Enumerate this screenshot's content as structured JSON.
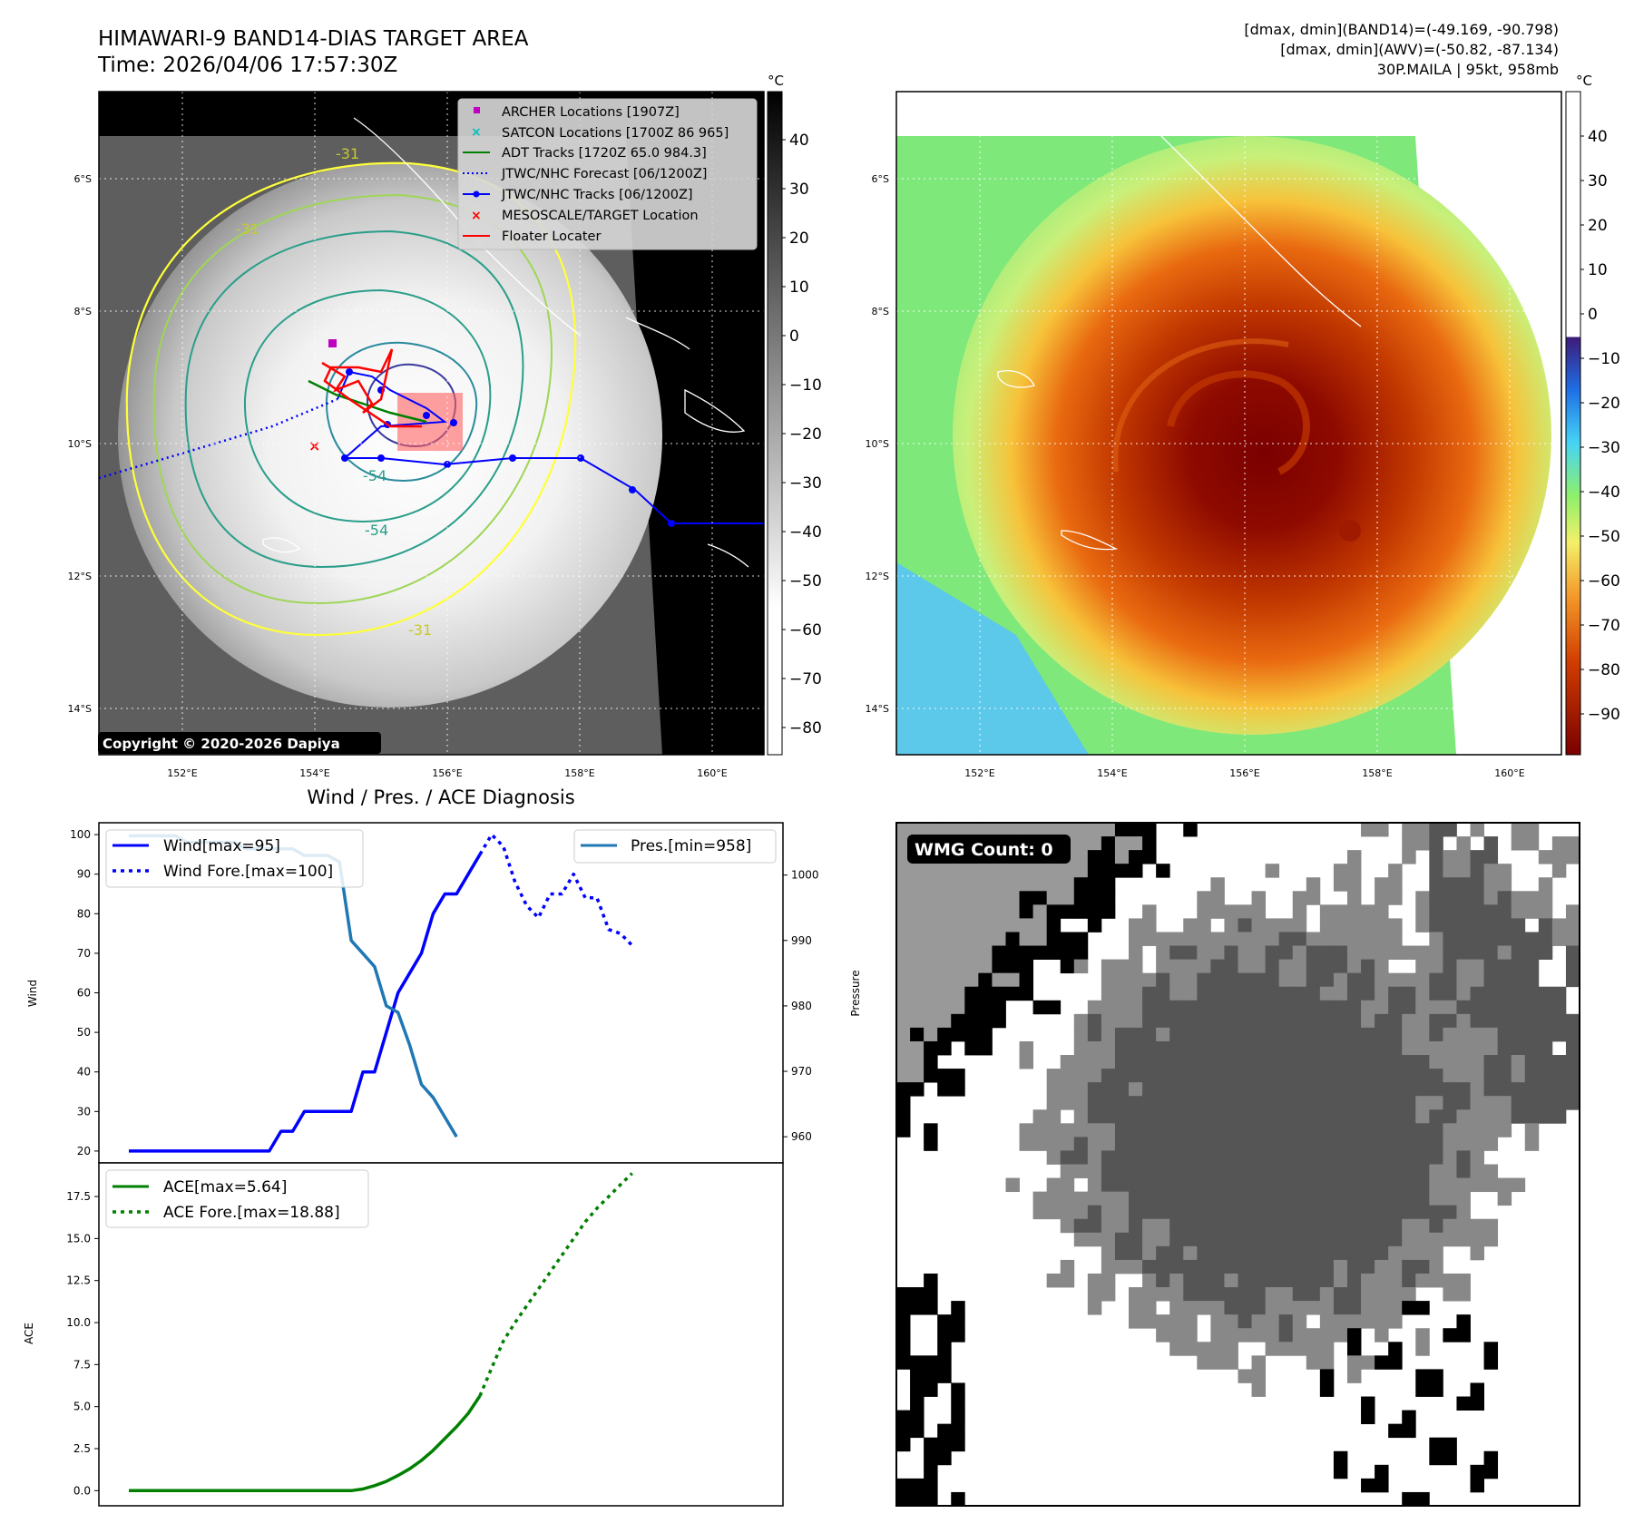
{
  "header": {
    "title_line1": "HIMAWARI-9 BAND14-DIAS TARGET AREA",
    "title_line2": "Time: 2026/04/06 17:57:30Z",
    "info_line1": "[dmax, dmin](BAND14)=(-49.169, -90.798)",
    "info_line2": "[dmax, dmin](AWV)=(-50.82, -87.134)",
    "info_line3": "30P.MAILA | 95kt, 958mb"
  },
  "map": {
    "lat_labels": [
      "6°S",
      "8°S",
      "10°S",
      "12°S",
      "14°S"
    ],
    "lon_labels": [
      "152°E",
      "154°E",
      "156°E",
      "158°E",
      "160°E"
    ],
    "copyright": "Copyright © 2020-2026 Dapiya",
    "contour_labels": [
      "-31",
      "-31",
      "-31",
      "-54",
      "-54",
      "-31"
    ],
    "legend": [
      {
        "label": "ARCHER Locations [1907Z]",
        "color": "#bf00bf",
        "marker": "square"
      },
      {
        "label": "SATCON Locations [1700Z 86 965]",
        "color": "#00bfbf",
        "marker": "x"
      },
      {
        "label": "ADT Tracks [1720Z 65.0 984.3]",
        "color": "#008000",
        "marker": "line"
      },
      {
        "label": "JTWC/NHC Forecast [06/1200Z]",
        "color": "#0000ff",
        "marker": "dotted"
      },
      {
        "label": "JTWC/NHC Tracks [06/1200Z]",
        "color": "#0000ff",
        "marker": "line-dot"
      },
      {
        "label": "MESOSCALE/TARGET Location",
        "color": "#ff0000",
        "marker": "x"
      },
      {
        "label": "Floater Locater",
        "color": "#ff0000",
        "marker": "line"
      }
    ]
  },
  "colorbar_left": {
    "unit": "°C",
    "ticks": [
      "40",
      "30",
      "20",
      "10",
      "0",
      "−10",
      "−20",
      "−30",
      "−40",
      "−50",
      "−60",
      "−70",
      "−80"
    ]
  },
  "colorbar_right": {
    "unit": "°C",
    "ticks": [
      "40",
      "30",
      "20",
      "10",
      "0",
      "−10",
      "−20",
      "−30",
      "−40",
      "−50",
      "−60",
      "−70",
      "−80",
      "−90"
    ]
  },
  "wmg": {
    "label": "WMG Count: 0"
  },
  "chart_data": [
    {
      "type": "line",
      "title": "Wind / Pres. / ACE Diagnosis",
      "ylabel": "Wind",
      "y2label": "Pressure",
      "ylim": [
        17,
        103
      ],
      "y2lim": [
        956,
        1008
      ],
      "y_ticks": [
        "20",
        "30",
        "40",
        "50",
        "60",
        "70",
        "80",
        "90",
        "100"
      ],
      "y2_ticks": [
        "960",
        "970",
        "980",
        "990",
        "1000"
      ],
      "legend_left": [
        "Wind[max=95]",
        "Wind Fore.[max=100]"
      ],
      "legend_right": [
        "Pres.[min=958]"
      ],
      "series": [
        {
          "name": "Wind[max=95]",
          "axis": "left",
          "color": "#0000ff",
          "style": "solid",
          "values": [
            20,
            20,
            20,
            20,
            20,
            20,
            20,
            20,
            20,
            20,
            20,
            20,
            20,
            25,
            25,
            30,
            30,
            30,
            30,
            30,
            40,
            40,
            50,
            60,
            65,
            70,
            80,
            85,
            85,
            90,
            95
          ]
        },
        {
          "name": "Wind Fore.[max=100]",
          "axis": "left",
          "color": "#0000ff",
          "style": "dotted",
          "x_start": 30,
          "values": [
            95,
            100,
            97,
            88,
            82,
            79,
            85,
            85,
            90,
            84,
            84,
            76,
            75,
            72
          ]
        },
        {
          "name": "Pres.[min=958]",
          "axis": "right",
          "color": "#1f77b4",
          "style": "solid",
          "values": [
            1006,
            1006,
            1006,
            1006,
            1006,
            1005,
            1005,
            1005,
            1005,
            1005,
            1004,
            1004,
            1004,
            1004,
            1004,
            1003,
            1003,
            1003,
            1002,
            990,
            988,
            986,
            980,
            979,
            974,
            968,
            966,
            963,
            960
          ]
        }
      ]
    },
    {
      "type": "line",
      "ylabel": "ACE",
      "ylim": [
        -0.9,
        19.5
      ],
      "y_ticks": [
        "0.0",
        "2.5",
        "5.0",
        "7.5",
        "10.0",
        "12.5",
        "15.0",
        "17.5"
      ],
      "legend": [
        "ACE[max=5.64]",
        "ACE Fore.[max=18.88]"
      ],
      "series": [
        {
          "name": "ACE[max=5.64]",
          "color": "#008000",
          "style": "solid",
          "values": [
            0,
            0,
            0,
            0,
            0,
            0,
            0,
            0,
            0,
            0,
            0,
            0,
            0,
            0,
            0,
            0,
            0,
            0,
            0,
            0,
            0.1,
            0.3,
            0.55,
            0.9,
            1.3,
            1.8,
            2.4,
            3.1,
            3.8,
            4.6,
            5.64
          ]
        },
        {
          "name": "ACE Fore.[max=18.88]",
          "color": "#008000",
          "style": "dotted",
          "x_start": 30,
          "values": [
            5.64,
            7.3,
            8.9,
            10.0,
            11.0,
            12.0,
            13.0,
            14.0,
            15.0,
            16.0,
            16.8,
            17.5,
            18.2,
            18.88
          ]
        }
      ]
    }
  ]
}
